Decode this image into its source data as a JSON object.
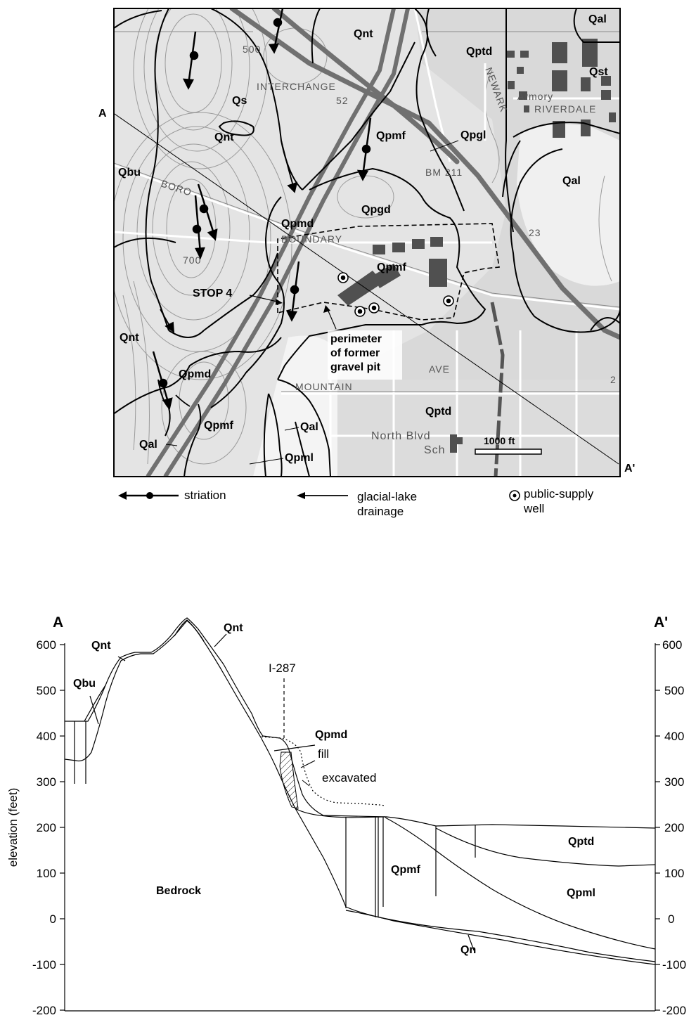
{
  "map": {
    "units": [
      "Qal",
      "Qptd",
      "Qst",
      "Qnt",
      "Qs",
      "Qpmf",
      "Qpgl",
      "Qbu",
      "Qal",
      "Qpgd",
      "Qpmd",
      "Qpmf",
      "Qnt",
      "Qpmd",
      "Qpmf",
      "Qal",
      "Qal",
      "Qpml",
      "Qptd"
    ],
    "place_labels": [
      "INTERCHANGE",
      "52",
      "NEWARK",
      "RIVERDALE",
      "Armory",
      "BM 211",
      "BORO",
      "BOUNDARY",
      "AVE",
      "MOUNTAIN",
      "North Blvd",
      "Sch",
      "23",
      "700",
      "500",
      "2"
    ],
    "stop_label": "STOP 4",
    "pit_label_lines": [
      "perimeter",
      "of former",
      "gravel pit"
    ],
    "section_ends": [
      "A",
      "A'"
    ],
    "scale_label": "1000 ft",
    "legend": {
      "striation": "striation",
      "drainage_lines": [
        "glacial-lake",
        "drainage"
      ],
      "well_lines": [
        "public-supply",
        "well"
      ]
    }
  },
  "section": {
    "end_left": "A",
    "end_right": "A'",
    "y_axis_title": "elevation (feet)",
    "y_ticks_left": [
      "600",
      "500",
      "400",
      "300",
      "200",
      "100",
      "0",
      "-100",
      "-200"
    ],
    "y_ticks_right": [
      "600",
      "500",
      "400",
      "300",
      "200",
      "100",
      "0",
      "-100",
      "-200"
    ],
    "unit_labels": [
      "Qnt",
      "Qnt",
      "Qbu",
      "Qpmd",
      "fill",
      "excavated",
      "Qptd",
      "Qpmf",
      "Qpml",
      "Bedrock",
      "Qn"
    ],
    "highway_label": "I-287"
  }
}
